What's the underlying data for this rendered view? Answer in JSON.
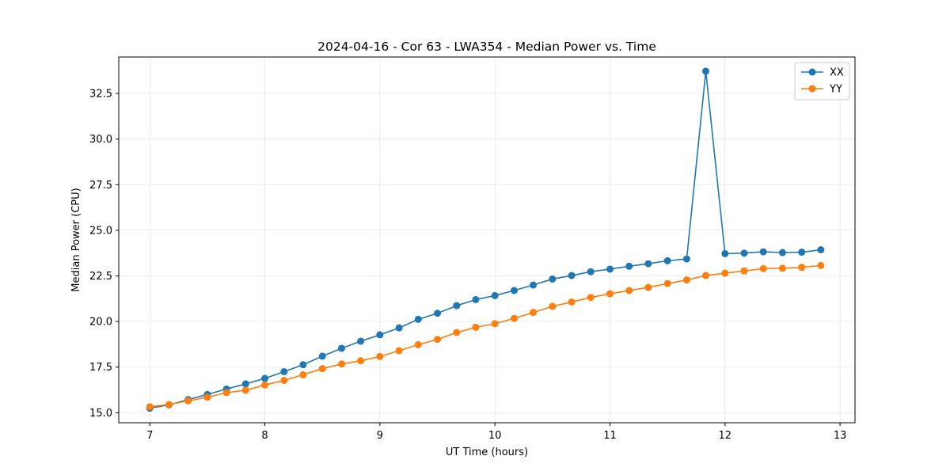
{
  "chart_data": {
    "type": "line",
    "title": "2024-04-16 - Cor 63 - LWA354 - Median Power vs. Time",
    "xlabel": "UT Time (hours)",
    "ylabel": "Median Power (CPU)",
    "xlim": [
      6.73,
      13.13
    ],
    "ylim": [
      14.45,
      34.5
    ],
    "xticks": [
      7,
      8,
      9,
      10,
      11,
      12,
      13
    ],
    "yticks": [
      15.0,
      17.5,
      20.0,
      22.5,
      25.0,
      27.5,
      30.0,
      32.5
    ],
    "xtick_labels": [
      "7",
      "8",
      "9",
      "10",
      "11",
      "12",
      "13"
    ],
    "ytick_labels": [
      "15.0",
      "17.5",
      "20.0",
      "22.5",
      "25.0",
      "27.5",
      "30.0",
      "32.5"
    ],
    "grid": true,
    "legend_position": "top-right",
    "x": [
      7.0,
      7.167,
      7.333,
      7.5,
      7.667,
      7.833,
      8.0,
      8.167,
      8.333,
      8.5,
      8.667,
      8.833,
      9.0,
      9.167,
      9.333,
      9.5,
      9.667,
      9.833,
      10.0,
      10.167,
      10.333,
      10.5,
      10.667,
      10.833,
      11.0,
      11.167,
      11.333,
      11.5,
      11.667,
      11.833,
      12.0,
      12.167,
      12.333,
      12.5,
      12.667,
      12.833
    ],
    "series": [
      {
        "name": "XX",
        "color": "#1f77b4",
        "values": [
          15.25,
          15.43,
          15.72,
          16.0,
          16.3,
          16.58,
          16.88,
          17.25,
          17.63,
          18.1,
          18.53,
          18.92,
          19.27,
          19.65,
          20.12,
          20.45,
          20.87,
          21.2,
          21.42,
          21.7,
          22.0,
          22.33,
          22.52,
          22.73,
          22.87,
          23.03,
          23.17,
          23.33,
          23.43,
          33.72,
          23.72,
          23.75,
          23.82,
          23.78,
          23.8,
          23.93
        ]
      },
      {
        "name": "YY",
        "color": "#ff7f0e",
        "values": [
          15.33,
          15.45,
          15.65,
          15.85,
          16.1,
          16.23,
          16.52,
          16.77,
          17.08,
          17.42,
          17.67,
          17.85,
          18.08,
          18.4,
          18.73,
          19.02,
          19.4,
          19.68,
          19.88,
          20.17,
          20.5,
          20.83,
          21.07,
          21.32,
          21.52,
          21.7,
          21.87,
          22.08,
          22.28,
          22.52,
          22.65,
          22.77,
          22.9,
          22.92,
          22.97,
          23.07
        ]
      }
    ]
  }
}
